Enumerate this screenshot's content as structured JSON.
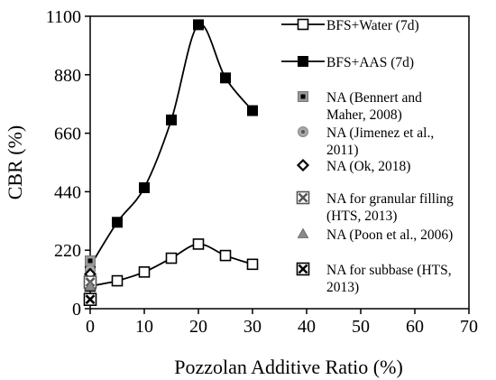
{
  "chart_data": {
    "type": "line",
    "xlabel": "Pozzolan Additive Ratio (%)",
    "ylabel": "CBR (%)",
    "xlim": [
      0,
      70
    ],
    "ylim": [
      0,
      1100
    ],
    "x_ticks": [
      0,
      10,
      20,
      30,
      40,
      50,
      60,
      70
    ],
    "x_tick_labels": [
      "0",
      "10",
      "20",
      "30",
      "40",
      "50",
      "60",
      "70"
    ],
    "y_ticks": [
      0,
      220,
      440,
      660,
      880,
      1100
    ],
    "y_tick_labels": [
      "0",
      "220",
      "440",
      "660",
      "880",
      "1100"
    ],
    "grid": false,
    "legend_position": "right",
    "series": [
      {
        "name": "BFS+Water (7d)",
        "marker": "open-square",
        "color": "#000000",
        "x": [
          0,
          5,
          10,
          15,
          20,
          25,
          30
        ],
        "y": [
          85,
          105,
          138,
          190,
          243,
          200,
          167
        ]
      },
      {
        "name": "BFS+AAS (7d)",
        "marker": "filled-square",
        "color": "#000000",
        "x": [
          0,
          5,
          10,
          15,
          20,
          25,
          30
        ],
        "y": [
          160,
          325,
          455,
          710,
          1068,
          868,
          745
        ]
      }
    ],
    "reference_points": [
      {
        "name": "NA (Bennert and Maher, 2008)",
        "marker": "gray-square-dot",
        "x": 0,
        "y": 180
      },
      {
        "name": "NA (Jimenez et al., 2011)",
        "marker": "gray-circle-dot",
        "x": 0,
        "y": 145
      },
      {
        "name": "NA (Ok, 2018)",
        "marker": "diamond",
        "x": 0,
        "y": 130
      },
      {
        "name": "NA for granular filling (HTS, 2013)",
        "marker": "square-x-gray",
        "x": 0,
        "y": 100
      },
      {
        "name": "NA (Poon et al., 2006)",
        "marker": "gray-triangle",
        "x": 0,
        "y": 85
      },
      {
        "name": "NA for subbase (HTS, 2013)",
        "marker": "square-x-black",
        "x": 0,
        "y": 35
      }
    ],
    "legend": [
      {
        "label_lines": [
          "BFS+Water (7d)"
        ],
        "symbol": "line-open-square"
      },
      {
        "label_lines": [
          "BFS+AAS (7d)"
        ],
        "symbol": "line-filled-square"
      },
      {
        "label_lines": [
          "NA (Bennert and",
          "Maher, 2008)"
        ],
        "symbol": "gray-square-dot"
      },
      {
        "label_lines": [
          "NA (Jimenez et al.,",
          "2011)"
        ],
        "symbol": "gray-circle-dot"
      },
      {
        "label_lines": [
          "NA (Ok, 2018)"
        ],
        "symbol": "diamond"
      },
      {
        "label_lines": [
          "NA for granular filling",
          "(HTS, 2013)"
        ],
        "symbol": "square-x-gray"
      },
      {
        "label_lines": [
          "NA (Poon et al., 2006)"
        ],
        "symbol": "gray-triangle"
      },
      {
        "label_lines": [
          "NA for subbase (HTS,",
          "2013)"
        ],
        "symbol": "square-x-black"
      }
    ]
  }
}
